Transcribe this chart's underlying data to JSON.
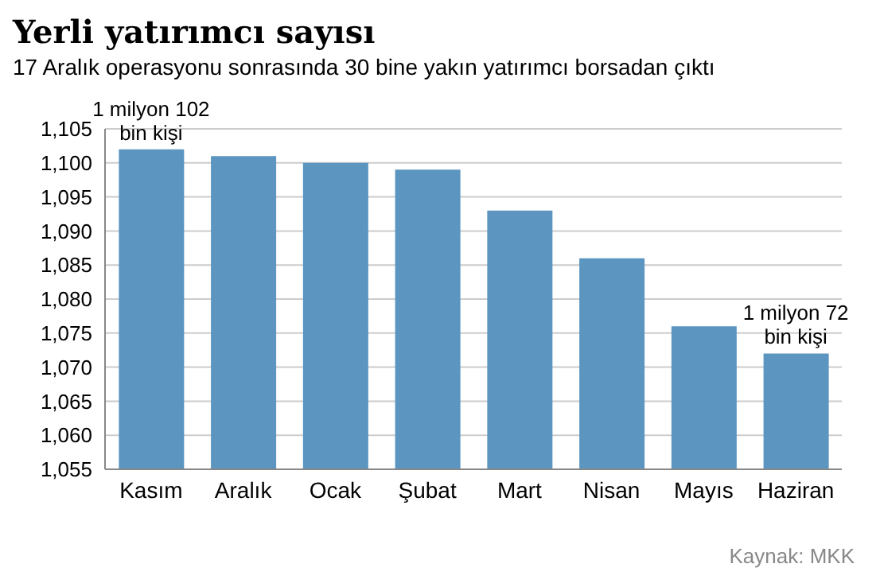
{
  "chart_data": {
    "type": "bar",
    "title": "Yerli yatırımcı sayısı",
    "subtitle": "17 Aralık operasyonu sonrasında 30 bine yakın yatırımcı borsadan çıktı",
    "categories": [
      "Kasım",
      "Aralık",
      "Ocak",
      "Şubat",
      "Mart",
      "Nisan",
      "Mayıs",
      "Haziran"
    ],
    "values": [
      1102,
      1101,
      1100,
      1099,
      1093,
      1086,
      1076,
      1072
    ],
    "color": "#5b95c0",
    "ylim": [
      1055,
      1105
    ],
    "yticks": [
      {
        "value": 1055,
        "label": "1,055"
      },
      {
        "value": 1060,
        "label": "1,060"
      },
      {
        "value": 1065,
        "label": "1,065"
      },
      {
        "value": 1070,
        "label": "1,070"
      },
      {
        "value": 1075,
        "label": "1,075"
      },
      {
        "value": 1080,
        "label": "1,080"
      },
      {
        "value": 1085,
        "label": "1,085"
      },
      {
        "value": 1090,
        "label": "1,090"
      },
      {
        "value": 1095,
        "label": "1,095"
      },
      {
        "value": 1100,
        "label": "1,100"
      },
      {
        "value": 1105,
        "label": "1,105"
      }
    ],
    "grid": "y",
    "annotations": [
      {
        "text": "1 milyon 102 bin kişi",
        "x": "Kasım",
        "y": 1102
      },
      {
        "text": "1 milyon 72 bin kişi",
        "x": "Haziran",
        "y": 1072
      },
      "Kaynak: MKK"
    ]
  }
}
